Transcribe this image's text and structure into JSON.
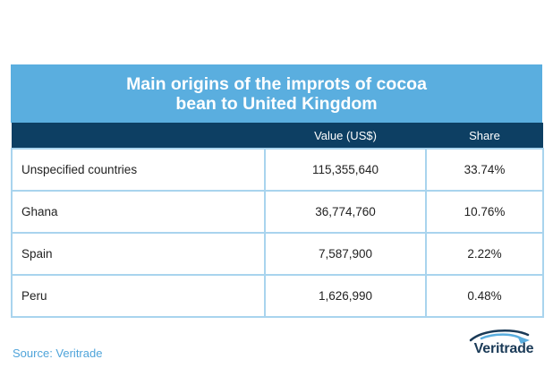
{
  "title_line1": "Main origins of the improts of cocoa",
  "title_line2": "bean to United Kingdom",
  "columns": [
    "",
    "Value (US$)",
    "Share"
  ],
  "rows": [
    {
      "country": "Unspecified countries",
      "value": "115,355,640",
      "share": "33.74%"
    },
    {
      "country": "Ghana",
      "value": "36,774,760",
      "share": "10.76%"
    },
    {
      "country": "Spain",
      "value": "7,587,900",
      "share": "2.22%"
    },
    {
      "country": "Peru",
      "value": "1,626,990",
      "share": "0.48%"
    }
  ],
  "source": "Source: Veritrade",
  "logo_text": "Veritrade",
  "colors": {
    "title_bg": "#5aaedf",
    "header_bg": "#0d3f63",
    "grid": "#a9d4ee",
    "source_text": "#4fa4da"
  },
  "chart_data": {
    "type": "table",
    "title": "Main origins of the improts of cocoa bean to United Kingdom",
    "columns": [
      "",
      "Value (US$)",
      "Share"
    ],
    "categories": [
      "Unspecified countries",
      "Ghana",
      "Spain",
      "Peru"
    ],
    "series": [
      {
        "name": "Value (US$)",
        "values": [
          115355640,
          36774760,
          7587900,
          1626990
        ]
      },
      {
        "name": "Share",
        "values": [
          33.74,
          10.76,
          2.22,
          0.48
        ]
      }
    ]
  }
}
